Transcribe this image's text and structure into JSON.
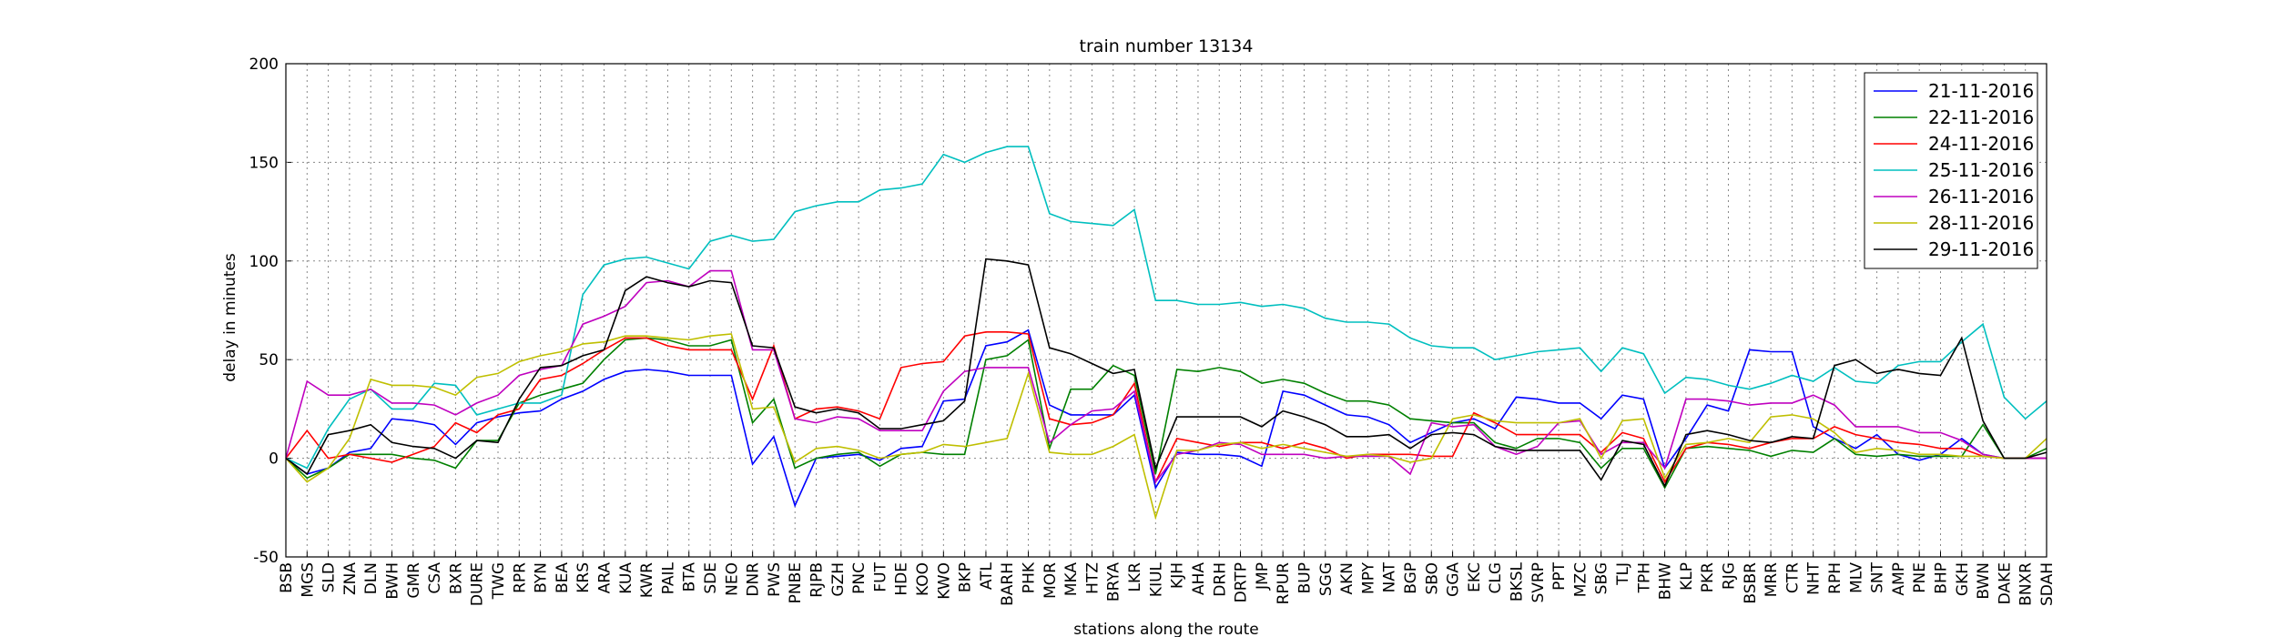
{
  "chart_data": {
    "type": "line",
    "title": "train number 13134",
    "x_label": "stations along the route",
    "y_label": "delay in minutes",
    "categories": [
      "BSB",
      "MGS",
      "SLD",
      "ZNA",
      "DLN",
      "BWH",
      "GMR",
      "CSA",
      "BXR",
      "DURE",
      "TWG",
      "RPR",
      "BYN",
      "BEA",
      "KRS",
      "ARA",
      "KUA",
      "KWR",
      "PAIL",
      "BTA",
      "SDE",
      "NEO",
      "DNR",
      "PWS",
      "PNBE",
      "RJPB",
      "GZH",
      "PNC",
      "FUT",
      "HDE",
      "KOO",
      "KWO",
      "BKP",
      "ATL",
      "BARH",
      "PHK",
      "MOR",
      "MKA",
      "HTZ",
      "BRYA",
      "LKR",
      "KIUL",
      "KJH",
      "AHA",
      "DRH",
      "DRTP",
      "JMP",
      "RPUR",
      "BUP",
      "SGG",
      "AKN",
      "MPY",
      "NAT",
      "BGP",
      "SBO",
      "GGA",
      "EKC",
      "CLG",
      "BKSL",
      "SVRP",
      "PPT",
      "MZC",
      "SBG",
      "TLJ",
      "TPH",
      "BHW",
      "KLP",
      "PKR",
      "RJG",
      "BSBR",
      "MRR",
      "CTR",
      "NHT",
      "RPH",
      "MLV",
      "SNT",
      "AMP",
      "PNE",
      "BHP",
      "GKH",
      "BWN",
      "DAKE",
      "BNXR",
      "SDAH"
    ],
    "ylim": [
      -50,
      200
    ],
    "yticks": [
      -50,
      0,
      50,
      100,
      150,
      200
    ],
    "grid": true,
    "legend": "upper right",
    "series": [
      {
        "name": "21-11-2016",
        "color": "#0000ff",
        "values": [
          0,
          -8,
          -5,
          3,
          5,
          20,
          19,
          17,
          7,
          18,
          21,
          23,
          24,
          30,
          34,
          40,
          44,
          45,
          44,
          42,
          42,
          42,
          -3,
          11,
          -24,
          0,
          1,
          2,
          -1,
          5,
          6,
          29,
          30,
          57,
          59,
          65,
          27,
          22,
          22,
          22,
          32,
          -15,
          3,
          2,
          2,
          1,
          -4,
          34,
          32,
          27,
          22,
          21,
          17,
          8,
          13,
          18,
          20,
          15,
          31,
          30,
          28,
          28,
          20,
          32,
          30,
          -5,
          10,
          27,
          24,
          55,
          54,
          54,
          16,
          10,
          5,
          12,
          2,
          -1,
          2,
          10,
          2,
          0,
          0,
          0
        ]
      },
      {
        "name": "22-11-2016",
        "color": "#008000",
        "values": [
          0,
          -10,
          -5,
          2,
          2,
          2,
          0,
          -1,
          -5,
          9,
          9,
          28,
          32,
          35,
          38,
          50,
          60,
          61,
          60,
          57,
          57,
          60,
          18,
          30,
          -5,
          0,
          2,
          3,
          -4,
          2,
          3,
          2,
          2,
          50,
          52,
          60,
          5,
          35,
          35,
          47,
          42,
          -8,
          45,
          44,
          46,
          44,
          38,
          40,
          38,
          33,
          29,
          29,
          27,
          20,
          19,
          18,
          18,
          8,
          5,
          10,
          10,
          8,
          -5,
          5,
          5,
          -15,
          5,
          6,
          5,
          4,
          1,
          4,
          3,
          10,
          2,
          1,
          2,
          1,
          1,
          1,
          17,
          0,
          0,
          5
        ]
      },
      {
        "name": "24-11-2016",
        "color": "#ff0000",
        "values": [
          0,
          14,
          0,
          2,
          0,
          -2,
          2,
          6,
          18,
          13,
          22,
          25,
          40,
          42,
          48,
          55,
          61,
          61,
          57,
          55,
          55,
          55,
          30,
          57,
          20,
          25,
          26,
          24,
          20,
          46,
          48,
          49,
          62,
          64,
          64,
          63,
          20,
          17,
          18,
          22,
          38,
          -12,
          10,
          8,
          6,
          8,
          8,
          5,
          8,
          5,
          0,
          2,
          2,
          2,
          1,
          1,
          23,
          18,
          12,
          12,
          12,
          12,
          3,
          13,
          10,
          -12,
          5,
          8,
          7,
          5,
          8,
          10,
          10,
          16,
          12,
          10,
          8,
          7,
          5,
          5,
          1,
          0,
          0,
          0
        ]
      },
      {
        "name": "25-11-2016",
        "color": "#00bfbf",
        "values": [
          0,
          -5,
          15,
          30,
          35,
          25,
          25,
          38,
          37,
          22,
          25,
          28,
          28,
          32,
          83,
          98,
          101,
          102,
          99,
          96,
          110,
          113,
          110,
          111,
          125,
          128,
          130,
          130,
          136,
          137,
          139,
          154,
          150,
          155,
          158,
          158,
          124,
          120,
          119,
          118,
          126,
          80,
          80,
          78,
          78,
          79,
          77,
          78,
          76,
          71,
          69,
          69,
          68,
          61,
          57,
          56,
          56,
          50,
          52,
          54,
          55,
          56,
          44,
          56,
          53,
          33,
          41,
          40,
          37,
          35,
          38,
          42,
          39,
          46,
          39,
          38,
          47,
          49,
          49,
          59,
          68,
          31,
          20,
          29
        ]
      },
      {
        "name": "26-11-2016",
        "color": "#bf00bf",
        "values": [
          0,
          39,
          32,
          32,
          35,
          28,
          28,
          27,
          22,
          28,
          32,
          42,
          45,
          47,
          68,
          72,
          77,
          89,
          90,
          87,
          95,
          95,
          55,
          55,
          20,
          18,
          21,
          20,
          14,
          14,
          14,
          34,
          44,
          46,
          46,
          46,
          8,
          17,
          24,
          25,
          34,
          -12,
          2,
          4,
          8,
          7,
          2,
          2,
          2,
          0,
          1,
          1,
          1,
          -8,
          18,
          16,
          17,
          6,
          2,
          6,
          18,
          19,
          2,
          8,
          8,
          -5,
          30,
          30,
          29,
          27,
          28,
          28,
          32,
          27,
          16,
          16,
          16,
          13,
          13,
          9,
          2,
          0,
          0,
          0
        ]
      },
      {
        "name": "28-11-2016",
        "color": "#bfbf00",
        "values": [
          0,
          -12,
          -5,
          10,
          40,
          37,
          37,
          36,
          32,
          41,
          43,
          49,
          52,
          54,
          58,
          59,
          62,
          62,
          61,
          60,
          62,
          63,
          25,
          26,
          -2,
          5,
          6,
          4,
          0,
          2,
          3,
          7,
          6,
          8,
          10,
          43,
          3,
          2,
          2,
          6,
          12,
          -30,
          4,
          4,
          7,
          8,
          5,
          7,
          5,
          3,
          1,
          2,
          1,
          -2,
          0,
          20,
          22,
          19,
          18,
          18,
          18,
          20,
          0,
          19,
          20,
          -10,
          7,
          8,
          10,
          8,
          21,
          22,
          20,
          13,
          3,
          5,
          4,
          2,
          2,
          1,
          1,
          0,
          0,
          10
        ]
      },
      {
        "name": "29-11-2016",
        "color": "#000000",
        "values": [
          0,
          -8,
          12,
          14,
          17,
          8,
          6,
          5,
          0,
          9,
          8,
          30,
          46,
          47,
          52,
          55,
          85,
          92,
          89,
          87,
          90,
          89,
          57,
          56,
          26,
          23,
          25,
          23,
          15,
          15,
          17,
          19,
          29,
          101,
          100,
          98,
          56,
          53,
          48,
          43,
          45,
          -5,
          21,
          21,
          21,
          21,
          16,
          24,
          21,
          17,
          11,
          11,
          12,
          5,
          12,
          13,
          12,
          6,
          4,
          4,
          4,
          4,
          -11,
          9,
          7,
          -14,
          12,
          14,
          12,
          9,
          8,
          11,
          10,
          47,
          50,
          43,
          45,
          43,
          42,
          61,
          19,
          0,
          0,
          3
        ]
      }
    ]
  }
}
